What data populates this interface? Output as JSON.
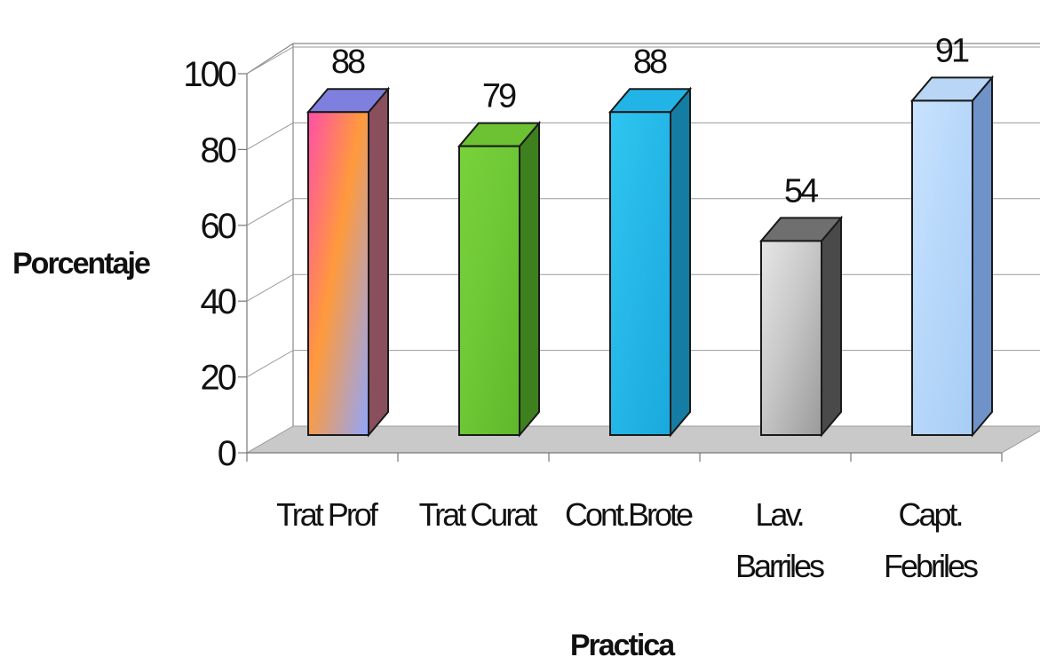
{
  "chart_data": {
    "type": "bar",
    "style": "3d-column",
    "categories": [
      [
        "Trat Prof"
      ],
      [
        "Trat Curat"
      ],
      [
        "Cont.Brote"
      ],
      [
        "Lav.",
        "Barriles"
      ],
      [
        "Capt.",
        "Febriles"
      ]
    ],
    "values": [
      88,
      79,
      88,
      54,
      91
    ],
    "data_labels": [
      "88",
      "79",
      "88",
      "54",
      "91"
    ],
    "xlabel": "Practica",
    "ylabel": "Porcentaje",
    "ylim": [
      0,
      100
    ],
    "yticks": [
      "0",
      "20",
      "40",
      "60",
      "80",
      "100"
    ],
    "grid": true,
    "legend": "none",
    "colors": [
      {
        "front_top": "#ff4fa8",
        "front_bottom": "#8fa6ff",
        "accent": "#ff9a3c",
        "side": "#8a4f5c",
        "top": "#7f7fe0"
      },
      {
        "front_top": "#78d23a",
        "front_bottom": "#5fb82a",
        "accent": "#6fc836",
        "side": "#3e7f1e",
        "top": "#6cc233"
      },
      {
        "front_top": "#2fc6f0",
        "front_bottom": "#1aa9dc",
        "accent": "#26b8e8",
        "side": "#157da3",
        "top": "#22b4e6"
      },
      {
        "front_top": "#e6e6e6",
        "front_bottom": "#9a9a9a",
        "accent": "#c8c8c8",
        "side": "#4a4a4a",
        "top": "#6f6f6f"
      },
      {
        "front_top": "#c9e3ff",
        "front_bottom": "#a7cdf5",
        "accent": "#b8d8fa",
        "side": "#6f93c9",
        "top": "#b9d6f6"
      }
    ]
  }
}
